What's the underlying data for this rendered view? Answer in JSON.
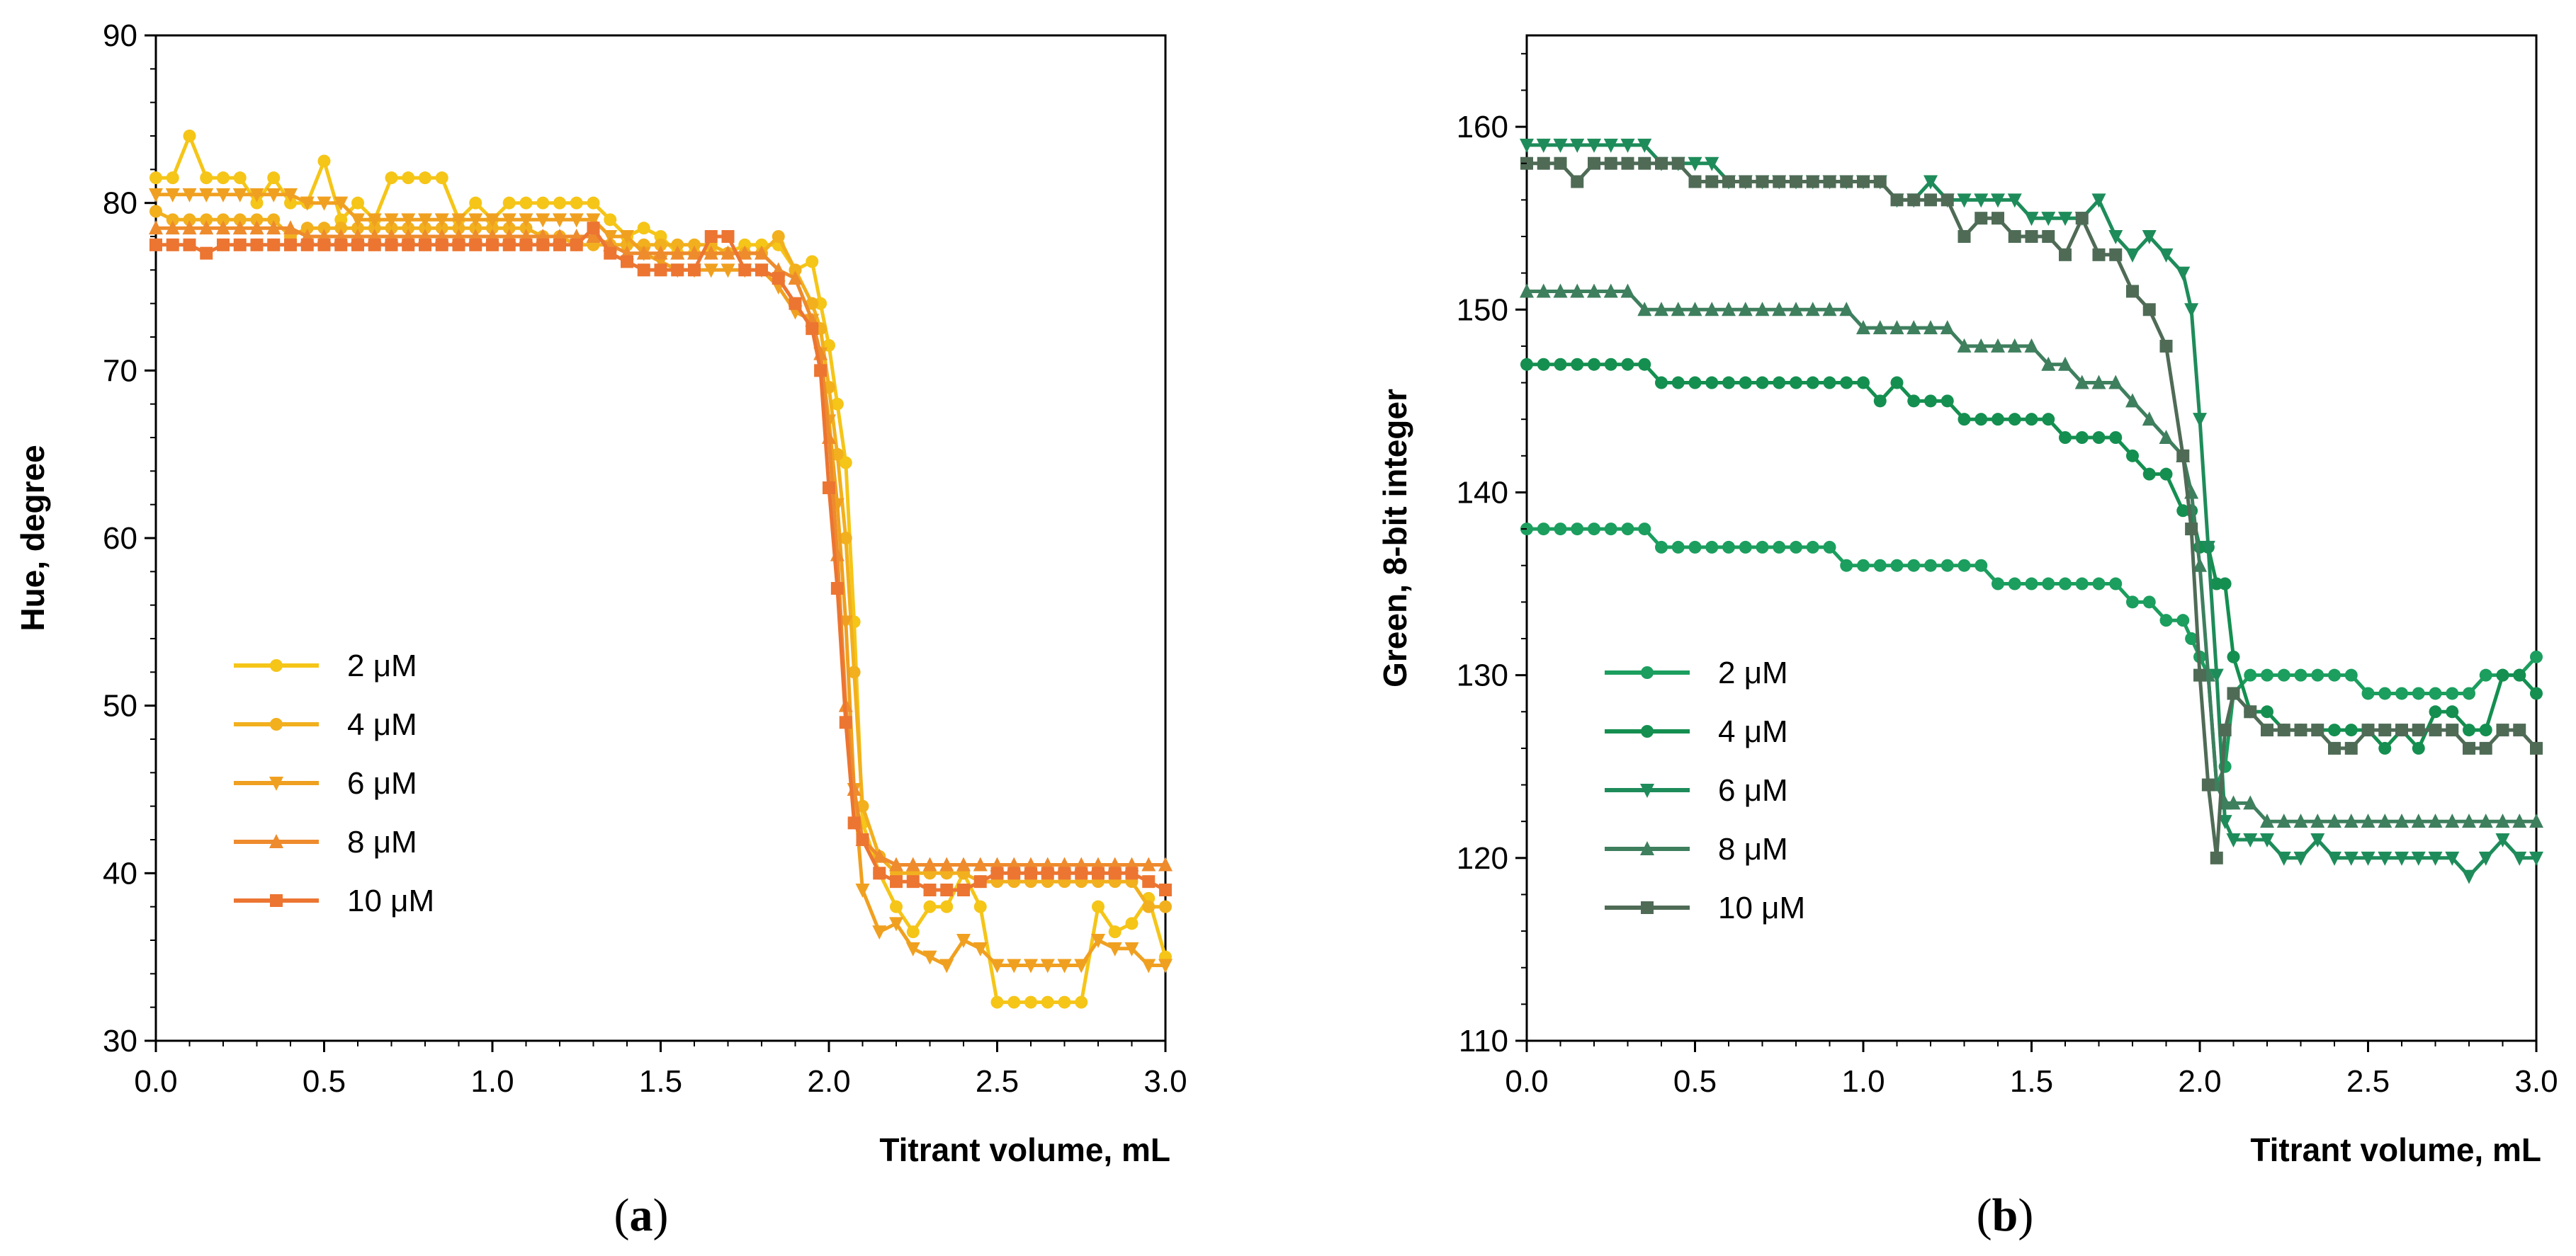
{
  "chart_data": [
    {
      "type": "line",
      "panel_label": "a",
      "title": "",
      "xlabel": "Titrant volume, mL",
      "ylabel": "Hue, degree",
      "xlim": [
        0,
        3
      ],
      "ylim": [
        30,
        90
      ],
      "xticks": [
        "0.0",
        "0.5",
        "1.0",
        "1.5",
        "2.0",
        "2.5",
        "3.0"
      ],
      "yticks": [
        "30",
        "40",
        "50",
        "60",
        "70",
        "80",
        "90"
      ],
      "legend_position": "middle-left",
      "x": [
        0.0,
        0.05,
        0.1,
        0.15,
        0.2,
        0.25,
        0.3,
        0.35,
        0.4,
        0.45,
        0.5,
        0.55,
        0.6,
        0.65,
        0.7,
        0.75,
        0.8,
        0.85,
        0.9,
        0.95,
        1.0,
        1.05,
        1.1,
        1.15,
        1.2,
        1.25,
        1.3,
        1.35,
        1.4,
        1.45,
        1.5,
        1.55,
        1.6,
        1.65,
        1.7,
        1.75,
        1.8,
        1.85,
        1.9,
        1.95,
        1.975,
        2.0,
        2.025,
        2.05,
        2.075,
        2.1,
        2.15,
        2.2,
        2.25,
        2.3,
        2.35,
        2.4,
        2.45,
        2.5,
        2.55,
        2.6,
        2.65,
        2.7,
        2.75,
        2.8,
        2.85,
        2.9,
        2.95,
        3.0
      ],
      "series": [
        {
          "name": "2 μM",
          "color": "#F5C518",
          "marker": "circle",
          "values": [
            81.5,
            81.5,
            84,
            81.5,
            81.5,
            81.5,
            80,
            81.5,
            80,
            80,
            82.5,
            79,
            80,
            79,
            81.5,
            81.5,
            81.5,
            81.5,
            79,
            80,
            79,
            80,
            80,
            80,
            80,
            80,
            80,
            79,
            78,
            78.5,
            78,
            77,
            77,
            77,
            77,
            77.5,
            77.5,
            77.5,
            76,
            76.5,
            74,
            71.5,
            68,
            64.5,
            55,
            43,
            40,
            38,
            36.5,
            38,
            38,
            40,
            38,
            32.3,
            32.3,
            32.3,
            32.3,
            32.3,
            32.3,
            38,
            36.5,
            37,
            38.5,
            35
          ]
        },
        {
          "name": "4 μM",
          "color": "#F2B01E",
          "marker": "circle",
          "values": [
            79.5,
            79,
            79,
            79,
            79,
            79,
            79,
            79,
            78,
            78.5,
            78.5,
            78.5,
            78.5,
            78.5,
            78.5,
            78.5,
            78.5,
            78.5,
            78.5,
            78.5,
            78.5,
            78.5,
            78.5,
            78,
            78,
            77.5,
            77.5,
            77.5,
            77.5,
            77.5,
            77.5,
            77.5,
            77.5,
            77.5,
            77,
            77,
            77,
            78,
            76,
            74,
            72.5,
            69,
            65,
            60,
            52,
            44,
            41,
            40,
            40,
            40,
            40,
            40,
            39.5,
            39.5,
            39.5,
            39.5,
            39.5,
            39.5,
            39.5,
            39.5,
            39.5,
            39.5,
            38,
            38
          ]
        },
        {
          "name": "6 μM",
          "color": "#F0A020",
          "marker": "triangle-down",
          "values": [
            80.5,
            80.5,
            80.5,
            80.5,
            80.5,
            80.5,
            80.5,
            80.5,
            80.5,
            80,
            80,
            80,
            79,
            79,
            79,
            79,
            79,
            79,
            79,
            79,
            79,
            79,
            79,
            79,
            79,
            79,
            79,
            78,
            78,
            77,
            76.5,
            76,
            76,
            76,
            76,
            76,
            76,
            75,
            73.5,
            73,
            71,
            67,
            62,
            55,
            45,
            39,
            36.5,
            37,
            35.5,
            35,
            34.5,
            36,
            35.5,
            34.5,
            34.5,
            34.5,
            34.5,
            34.5,
            34.5,
            36,
            35.5,
            35.5,
            34.5,
            34.5
          ]
        },
        {
          "name": "8 μM",
          "color": "#EE8B2D",
          "marker": "triangle-up",
          "values": [
            78.5,
            78.5,
            78.5,
            78.5,
            78.5,
            78.5,
            78.5,
            78.5,
            78.5,
            78,
            78,
            78,
            78,
            78,
            78,
            78,
            78,
            78,
            78,
            78,
            78,
            78,
            78,
            78,
            78,
            78,
            78,
            77.5,
            77,
            77,
            77,
            77,
            77,
            77,
            77,
            77,
            77,
            76,
            75.5,
            73,
            71,
            66,
            59,
            50,
            45,
            42,
            41,
            40.5,
            40.5,
            40.5,
            40.5,
            40.5,
            40.5,
            40.5,
            40.5,
            40.5,
            40.5,
            40.5,
            40.5,
            40.5,
            40.5,
            40.5,
            40.5,
            40.5
          ]
        },
        {
          "name": "10 μM",
          "color": "#EC7532",
          "marker": "square",
          "values": [
            77.5,
            77.5,
            77.5,
            77,
            77.5,
            77.5,
            77.5,
            77.5,
            77.5,
            77.5,
            77.5,
            77.5,
            77.5,
            77.5,
            77.5,
            77.5,
            77.5,
            77.5,
            77.5,
            77.5,
            77.5,
            77.5,
            77.5,
            77.5,
            77.5,
            77.5,
            78.5,
            77,
            76.5,
            76,
            76,
            76,
            76,
            78,
            78,
            76,
            76,
            75.5,
            74,
            72.5,
            70,
            63,
            57,
            49,
            43,
            42,
            40,
            39.5,
            39.5,
            39,
            39,
            39,
            39.5,
            40,
            40,
            40,
            40,
            40,
            40,
            40,
            40,
            40,
            39.5,
            39
          ]
        }
      ]
    },
    {
      "type": "line",
      "panel_label": "b",
      "title": "",
      "xlabel": "Titrant volume, mL",
      "ylabel": "Green, 8-bit integer",
      "xlim": [
        0,
        3
      ],
      "ylim": [
        110,
        165
      ],
      "xticks": [
        "0.0",
        "0.5",
        "1.0",
        "1.5",
        "2.0",
        "2.5",
        "3.0"
      ],
      "yticks": [
        "110",
        "120",
        "130",
        "140",
        "150",
        "160"
      ],
      "legend_position": "middle-left",
      "x": [
        0.0,
        0.05,
        0.1,
        0.15,
        0.2,
        0.25,
        0.3,
        0.35,
        0.4,
        0.45,
        0.5,
        0.55,
        0.6,
        0.65,
        0.7,
        0.75,
        0.8,
        0.85,
        0.9,
        0.95,
        1.0,
        1.05,
        1.1,
        1.15,
        1.2,
        1.25,
        1.3,
        1.35,
        1.4,
        1.45,
        1.5,
        1.55,
        1.6,
        1.65,
        1.7,
        1.75,
        1.8,
        1.85,
        1.9,
        1.95,
        1.975,
        2.0,
        2.025,
        2.05,
        2.075,
        2.1,
        2.15,
        2.2,
        2.25,
        2.3,
        2.35,
        2.4,
        2.45,
        2.5,
        2.55,
        2.6,
        2.65,
        2.7,
        2.75,
        2.8,
        2.85,
        2.9,
        2.95,
        3.0
      ],
      "series": [
        {
          "name": "2 μM",
          "color": "#1B9E5E",
          "marker": "circle",
          "values": [
            138,
            138,
            138,
            138,
            138,
            138,
            138,
            138,
            137,
            137,
            137,
            137,
            137,
            137,
            137,
            137,
            137,
            137,
            137,
            136,
            136,
            136,
            136,
            136,
            136,
            136,
            136,
            136,
            135,
            135,
            135,
            135,
            135,
            135,
            135,
            135,
            134,
            134,
            133,
            133,
            132,
            131,
            130,
            124,
            125,
            129,
            130,
            130,
            130,
            130,
            130,
            130,
            130,
            129,
            129,
            129,
            129,
            129,
            129,
            129,
            130,
            130,
            130,
            131
          ]
        },
        {
          "name": "4 μM",
          "color": "#148F50",
          "marker": "circle",
          "values": [
            147,
            147,
            147,
            147,
            147,
            147,
            147,
            147,
            146,
            146,
            146,
            146,
            146,
            146,
            146,
            146,
            146,
            146,
            146,
            146,
            146,
            145,
            146,
            145,
            145,
            145,
            144,
            144,
            144,
            144,
            144,
            144,
            143,
            143,
            143,
            143,
            142,
            141,
            141,
            139,
            139,
            137,
            137,
            135,
            135,
            131,
            128,
            128,
            127,
            127,
            127,
            127,
            127,
            127,
            126,
            127,
            126,
            128,
            128,
            127,
            127,
            130,
            130,
            129
          ]
        },
        {
          "name": "6 μM",
          "color": "#1E8C5A",
          "marker": "triangle-down",
          "values": [
            159,
            159,
            159,
            159,
            159,
            159,
            159,
            159,
            158,
            158,
            158,
            158,
            157,
            157,
            157,
            157,
            157,
            157,
            157,
            157,
            157,
            157,
            156,
            156,
            157,
            156,
            156,
            156,
            156,
            156,
            155,
            155,
            155,
            155,
            156,
            154,
            153,
            154,
            153,
            152,
            150,
            144,
            137,
            130,
            122,
            121,
            121,
            121,
            120,
            120,
            121,
            120,
            120,
            120,
            120,
            120,
            120,
            120,
            120,
            119,
            120,
            121,
            120,
            120
          ]
        },
        {
          "name": "8 μM",
          "color": "#3E7F5E",
          "marker": "triangle-up",
          "values": [
            151,
            151,
            151,
            151,
            151,
            151,
            151,
            150,
            150,
            150,
            150,
            150,
            150,
            150,
            150,
            150,
            150,
            150,
            150,
            150,
            149,
            149,
            149,
            149,
            149,
            149,
            148,
            148,
            148,
            148,
            148,
            147,
            147,
            146,
            146,
            146,
            145,
            144,
            143,
            142,
            140,
            136,
            130,
            124,
            123,
            123,
            123,
            122,
            122,
            122,
            122,
            122,
            122,
            122,
            122,
            122,
            122,
            122,
            122,
            122,
            122,
            122,
            122,
            122
          ]
        },
        {
          "name": "10 μM",
          "color": "#4F6B56",
          "marker": "square",
          "values": [
            158,
            158,
            158,
            157,
            158,
            158,
            158,
            158,
            158,
            158,
            157,
            157,
            157,
            157,
            157,
            157,
            157,
            157,
            157,
            157,
            157,
            157,
            156,
            156,
            156,
            156,
            154,
            155,
            155,
            154,
            154,
            154,
            153,
            155,
            153,
            153,
            151,
            150,
            148,
            142,
            138,
            130,
            124,
            120,
            127,
            129,
            128,
            127,
            127,
            127,
            127,
            126,
            126,
            127,
            127,
            127,
            127,
            127,
            127,
            126,
            126,
            127,
            127,
            126
          ]
        }
      ]
    }
  ]
}
